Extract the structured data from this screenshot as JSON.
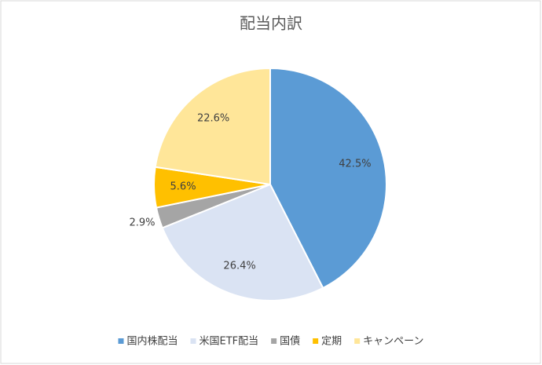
{
  "chart_data": {
    "type": "pie",
    "title": "配当内訳",
    "categories": [
      "国内株配当",
      "米国ETF配当",
      "国債",
      "定期",
      "キャンペーン"
    ],
    "values": [
      42.5,
      26.4,
      2.9,
      5.6,
      22.6
    ],
    "value_labels": [
      "42.5%",
      "26.4%",
      "2.9%",
      "5.6%",
      "22.6%"
    ],
    "colors": [
      "#5b9bd5",
      "#dae3f3",
      "#a5a5a5",
      "#ffc000",
      "#ffe699"
    ],
    "legend": "bottom"
  }
}
